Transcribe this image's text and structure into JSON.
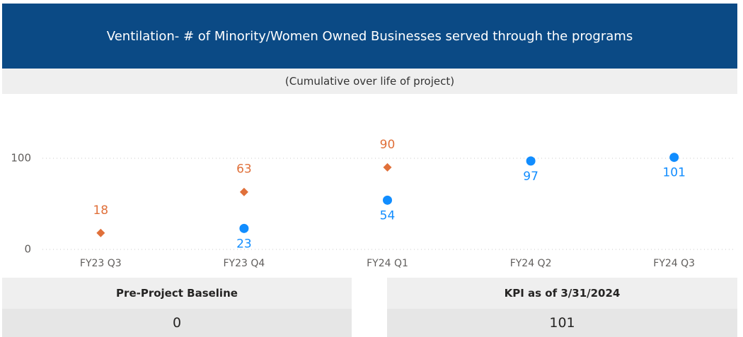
{
  "header": {
    "title": "Ventilation- # of Minority/Women Owned Businesses served through the programs",
    "subtitle": "(Cumulative over life of project)"
  },
  "chart_data": {
    "type": "scatter",
    "categories": [
      "FY23 Q3",
      "FY23 Q4",
      "FY24 Q1",
      "FY24 Q2",
      "FY24 Q3"
    ],
    "series": [
      {
        "color": "#e0703a",
        "marker": "diamond",
        "label_position": "above",
        "values": [
          18,
          63,
          90,
          null,
          null
        ]
      },
      {
        "color": "#118dff",
        "marker": "circle",
        "label_position": "below",
        "values": [
          null,
          23,
          54,
          97,
          101
        ]
      }
    ],
    "ylim": [
      0,
      150
    ],
    "yticks": [
      0,
      100
    ],
    "grid": true
  },
  "cards": [
    {
      "label": "Pre-Project Baseline",
      "value": "0"
    },
    {
      "label": "KPI as of 3/31/2024",
      "value": "101"
    }
  ]
}
